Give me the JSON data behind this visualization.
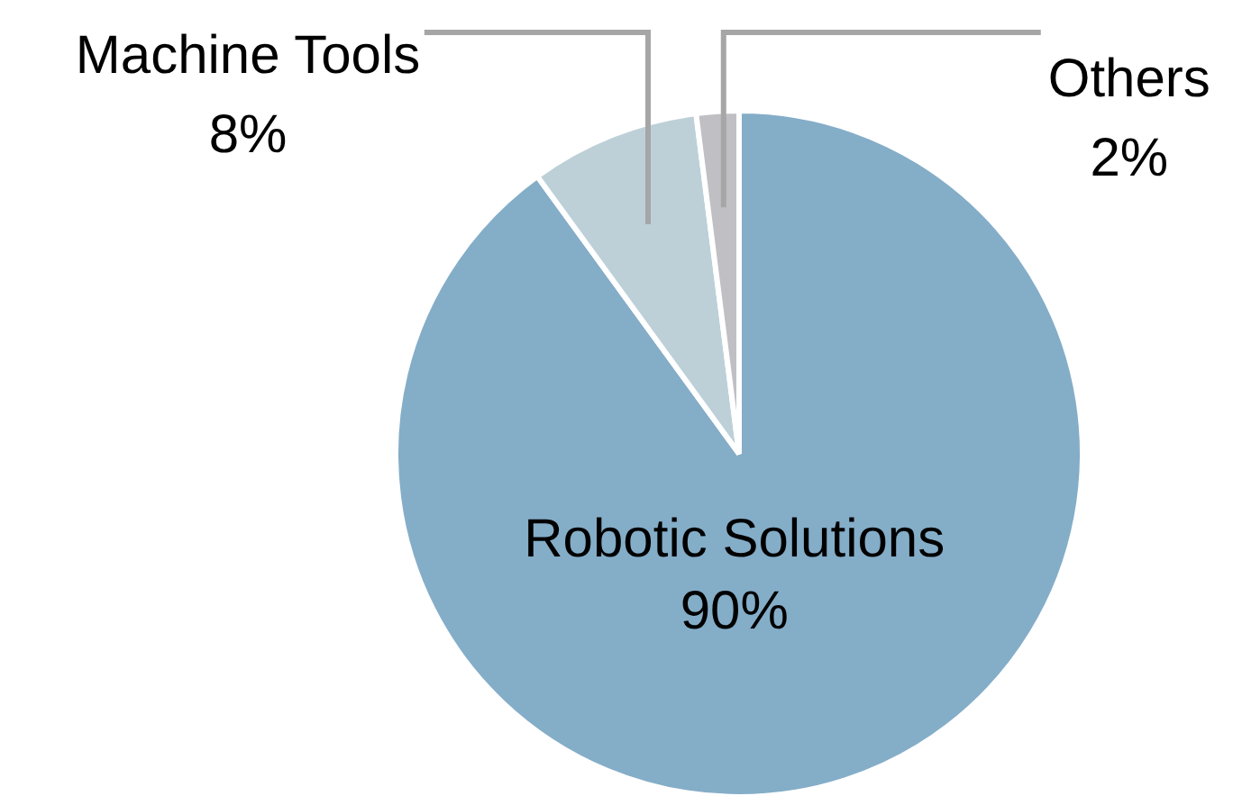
{
  "chart_data": {
    "type": "pie",
    "categories": [
      "Robotic Solutions",
      "Machine Tools",
      "Others"
    ],
    "values": [
      90,
      8,
      2
    ],
    "colors": [
      "#84adc8",
      "#bdd0d8",
      "#c0bfc4"
    ],
    "value_labels": [
      "90%",
      "8%",
      "2%"
    ],
    "legend": false
  }
}
